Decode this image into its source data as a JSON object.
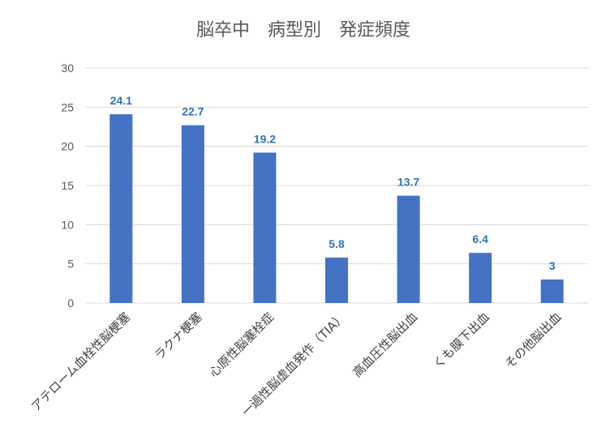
{
  "chart_data": {
    "type": "bar",
    "title": "脳卒中　病型別　発症頻度",
    "xlabel": "",
    "ylabel": "",
    "categories": [
      "アテローム血栓性脳梗塞",
      "ラクナ梗塞",
      "心原性脳塞栓症",
      "一過性脳虚血発作（TIA）",
      "高血圧性脳出血",
      "くも膜下出血",
      "その他脳出血"
    ],
    "values": [
      24.1,
      22.7,
      19.2,
      5.8,
      13.7,
      6.4,
      3
    ],
    "data_labels": [
      "24.1",
      "22.7",
      "19.2",
      "5.8",
      "13.7",
      "6.4",
      "3"
    ],
    "yticks": [
      "0",
      "5",
      "10",
      "15",
      "20",
      "25",
      "30"
    ],
    "ylim": [
      0,
      30
    ],
    "grid": true,
    "legend": "none",
    "colors": {
      "bar": "#4472c4",
      "label": "#2e75b6",
      "grid": "#d9d9d9",
      "text": "#595959"
    }
  }
}
